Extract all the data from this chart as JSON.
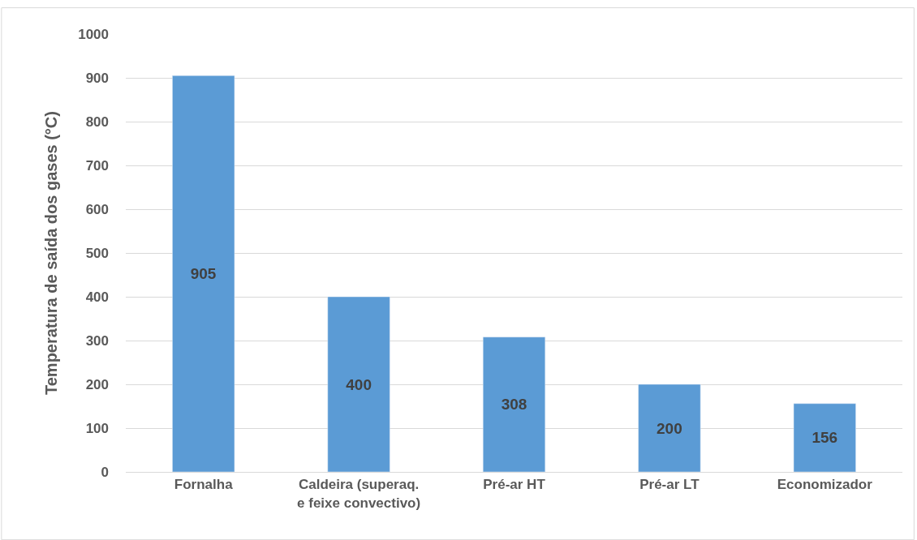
{
  "chart_data": {
    "type": "bar",
    "ylabel": "Temperatura de saída dos gases (°C)",
    "categories": [
      "Fornalha",
      "Caldeira (superaq.\ne feixe convectivo)",
      "Pré-ar HT",
      "Pré-ar LT",
      "Economizador"
    ],
    "values": [
      905,
      400,
      308,
      200,
      156
    ],
    "color": "#5b9bd5",
    "ylim": [
      0,
      1000
    ],
    "yticks": [
      0,
      100,
      200,
      300,
      400,
      500,
      600,
      700,
      800,
      900,
      1000
    ],
    "grid": "y",
    "data_labels": true,
    "legend": false
  }
}
